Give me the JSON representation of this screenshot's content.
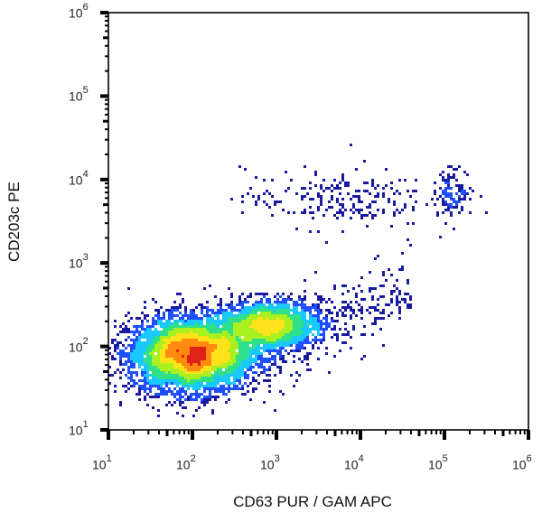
{
  "chart_data": {
    "type": "scatter",
    "subtype": "flow-cytometry density dot plot",
    "title": "",
    "xlabel": "CD63 PUR / GAM APC",
    "ylabel": "CD203c PE",
    "xscale": "log",
    "yscale": "log",
    "xlim": [
      10,
      1000000
    ],
    "ylim": [
      10,
      1000000
    ],
    "x_ticks": [
      {
        "base": "10",
        "exp": "1",
        "value": 10
      },
      {
        "base": "10",
        "exp": "2",
        "value": 100
      },
      {
        "base": "10",
        "exp": "3",
        "value": 1000
      },
      {
        "base": "10",
        "exp": "4",
        "value": 10000
      },
      {
        "base": "10",
        "exp": "5",
        "value": 100000
      },
      {
        "base": "10",
        "exp": "6",
        "value": 1000000
      }
    ],
    "y_ticks": [
      {
        "base": "10",
        "exp": "1",
        "value": 10
      },
      {
        "base": "10",
        "exp": "2",
        "value": 100
      },
      {
        "base": "10",
        "exp": "3",
        "value": 1000
      },
      {
        "base": "10",
        "exp": "4",
        "value": 10000
      },
      {
        "base": "10",
        "exp": "5",
        "value": 100000
      },
      {
        "base": "10",
        "exp": "6",
        "value": 1000000
      }
    ],
    "grid": false,
    "legend": "none",
    "colormap": [
      "#1a1aa0",
      "#1f4fff",
      "#19c8ff",
      "#2fe08a",
      "#a8f020",
      "#ffe21a",
      "#ff8a10",
      "#e0231a"
    ],
    "populations": [
      {
        "name": "main CD63-low / CD203c-low cluster",
        "center_x": 100,
        "center_y": 80,
        "spread_x_decades": 0.38,
        "spread_y_decades": 0.22,
        "density": "highest (red core)",
        "points": 5200
      },
      {
        "name": "CD63-mid shoulder cluster",
        "center_x": 800,
        "center_y": 180,
        "spread_x_decades": 0.3,
        "spread_y_decades": 0.15,
        "density": "medium (green core)",
        "points": 2000
      },
      {
        "name": "diagonal tail",
        "from_x": 1500,
        "from_y": 120,
        "to_x": 40000,
        "to_y": 500,
        "density": "sparse",
        "points": 260
      },
      {
        "name": "CD203c-high scattered population",
        "center_x": 5000,
        "center_y": 6000,
        "spread_x_decades": 0.55,
        "spread_y_decades": 0.18,
        "density": "sparse dots",
        "points": 230
      },
      {
        "name": "CD63-high / CD203c-high cluster",
        "center_x": 130000,
        "center_y": 7000,
        "spread_x_decades": 0.12,
        "spread_y_decades": 0.14,
        "density": "sparse-moderate",
        "points": 110
      }
    ]
  }
}
